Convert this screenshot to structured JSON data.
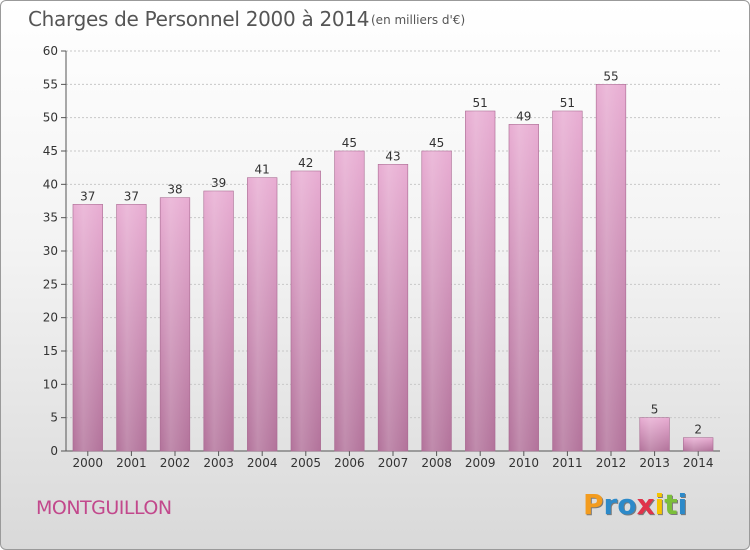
{
  "title": "Charges de Personnel 2000 à 2014",
  "subtitle": "(en milliers d'€)",
  "place": "MONTGUILLON",
  "logo": {
    "letters": [
      {
        "ch": "P",
        "color": "#f39c1f"
      },
      {
        "ch": "r",
        "color": "#2d8ac9"
      },
      {
        "ch": "o",
        "color": "#2d8ac9"
      },
      {
        "ch": "x",
        "color": "#e0334a"
      },
      {
        "ch": "i",
        "color": "#f5c400"
      },
      {
        "ch": "t",
        "color": "#7cbf3a"
      },
      {
        "ch": "i",
        "color": "#2d8ac9"
      }
    ]
  },
  "chart_data": {
    "type": "bar",
    "categories": [
      "2000",
      "2001",
      "2002",
      "2003",
      "2004",
      "2005",
      "2006",
      "2007",
      "2008",
      "2009",
      "2010",
      "2011",
      "2012",
      "2013",
      "2014"
    ],
    "values": [
      37,
      37,
      38,
      39,
      41,
      42,
      45,
      43,
      45,
      51,
      49,
      51,
      55,
      5,
      2
    ],
    "title": "Charges de Personnel 2000 à 2014",
    "ylim": [
      0,
      60
    ],
    "yticks": [
      0,
      5,
      10,
      15,
      20,
      25,
      30,
      35,
      40,
      45,
      50,
      55,
      60
    ],
    "grid": true,
    "bar_color": "#e0a3c9",
    "bar_color_dark": "#b5709b"
  }
}
